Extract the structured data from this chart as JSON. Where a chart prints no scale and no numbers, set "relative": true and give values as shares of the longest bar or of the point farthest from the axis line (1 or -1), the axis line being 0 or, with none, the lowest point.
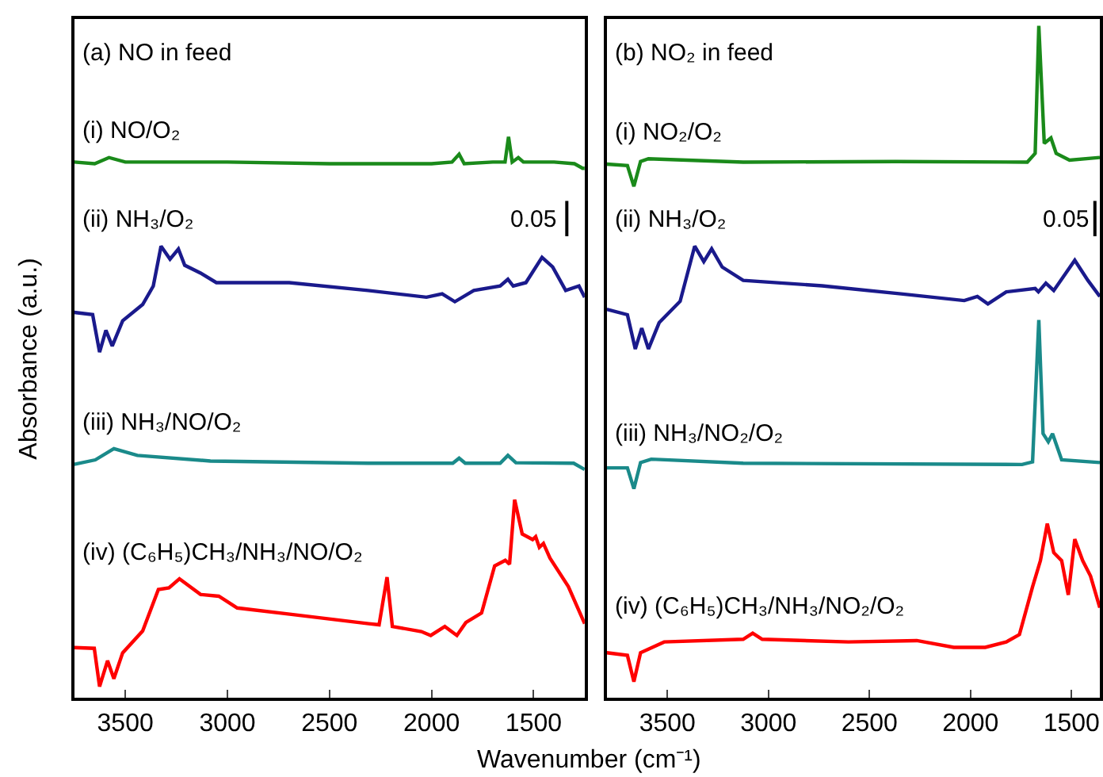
{
  "chart_data": [
    {
      "type": "line",
      "title": "(a) NO in feed",
      "xlabel": "Wavenumber (cm⁻¹)",
      "ylabel": "Absorbance (a.u.)",
      "relative": true,
      "tick_labels": "x",
      "xlim": [
        3750,
        1250
      ],
      "xticks": [
        3500,
        3000,
        2500,
        2000,
        1500
      ],
      "annotations": [
        "0.05"
      ],
      "series": [
        {
          "name": "(i) NO/O₂",
          "color": "#1a8a1a",
          "x": [
            3750,
            3650,
            3580,
            3500,
            3000,
            2500,
            2000,
            1900,
            1865,
            1840,
            1700,
            1640,
            1623,
            1605,
            1575,
            1550,
            1400,
            1300,
            1260,
            1250
          ],
          "values": [
            0.955,
            0.952,
            0.963,
            0.955,
            0.955,
            0.952,
            0.952,
            0.955,
            0.969,
            0.952,
            0.955,
            0.955,
            1.0,
            0.955,
            0.963,
            0.955,
            0.955,
            0.952,
            0.944,
            0.944
          ]
        },
        {
          "name": "(ii) NH₃/O₂",
          "color": "#1a1a8c",
          "x": [
            3750,
            3660,
            3626,
            3595,
            3564,
            3513,
            3415,
            3363,
            3325,
            3281,
            3240,
            3209,
            3131,
            3054,
            2697,
            2311,
            2025,
            1948,
            1886,
            1793,
            1664,
            1626,
            1600,
            1538,
            1459,
            1407,
            1343,
            1278,
            1250
          ],
          "values": [
            0.687,
            0.683,
            0.616,
            0.655,
            0.627,
            0.672,
            0.701,
            0.734,
            0.805,
            0.782,
            0.8,
            0.771,
            0.757,
            0.74,
            0.74,
            0.726,
            0.714,
            0.72,
            0.706,
            0.726,
            0.734,
            0.746,
            0.734,
            0.74,
            0.785,
            0.768,
            0.726,
            0.734,
            0.714
          ]
        },
        {
          "name": "(iii) NH₃/NO/O₂",
          "color": "#1a8a8a",
          "x": [
            3750,
            3647,
            3556,
            3441,
            3083,
            2311,
            1896,
            1865,
            1835,
            1664,
            1626,
            1587,
            1304,
            1250
          ],
          "values": [
            0.416,
            0.424,
            0.444,
            0.432,
            0.422,
            0.418,
            0.418,
            0.427,
            0.418,
            0.418,
            0.432,
            0.419,
            0.418,
            0.407
          ]
        },
        {
          "name": "(iv) (C₆H₅)CH₃/NH₃/NO/O₂",
          "color": "#ff0000",
          "x": [
            3750,
            3652,
            3626,
            3587,
            3556,
            3513,
            3415,
            3338,
            3286,
            3235,
            3131,
            3042,
            2952,
            2695,
            2308,
            2257,
            2218,
            2192,
            2050,
            2004,
            1935,
            1876,
            1832,
            1755,
            1691,
            1639,
            1618,
            1593,
            1556,
            1505,
            1490,
            1472,
            1452,
            1420,
            1330,
            1250
          ],
          "values": [
            0.0895,
            0.088,
            0.02,
            0.066,
            0.034,
            0.08,
            0.119,
            0.193,
            0.196,
            0.212,
            0.184,
            0.181,
            0.16,
            0.149,
            0.132,
            0.13,
            0.215,
            0.127,
            0.118,
            0.111,
            0.127,
            0.111,
            0.134,
            0.151,
            0.235,
            0.245,
            0.238,
            0.353,
            0.292,
            0.282,
            0.287,
            0.268,
            0.275,
            0.249,
            0.198,
            0.132
          ]
        }
      ]
    },
    {
      "type": "line",
      "title": "(b) NO₂ in feed",
      "relative": true,
      "tick_labels": "x",
      "xlim": [
        3800,
        1360
      ],
      "xticks": [
        3500,
        3000,
        2500,
        2000,
        1500
      ],
      "annotations": [
        "0.05"
      ],
      "series": [
        {
          "name": "(i) NO₂/O₂",
          "color": "#1a8a1a",
          "x": [
            3800,
            3698,
            3666,
            3633,
            3594,
            3125,
            2370,
            1719,
            1680,
            1662,
            1635,
            1602,
            1576,
            1510,
            1360
          ],
          "values": [
            0.794,
            0.792,
            0.761,
            0.798,
            0.802,
            0.797,
            0.798,
            0.797,
            0.81,
            1.0,
            0.825,
            0.833,
            0.81,
            0.8,
            0.804
          ]
        },
        {
          "name": "(ii) NH₃/O₂",
          "color": "#1a1a8c",
          "x": [
            3800,
            3698,
            3659,
            3627,
            3594,
            3541,
            3437,
            3365,
            3320,
            3281,
            3229,
            3125,
            2734,
            2344,
            2031,
            1966,
            1914,
            1823,
            1680,
            1664,
            1627,
            1588,
            1484,
            1419,
            1360
          ],
          "values": [
            0.578,
            0.57,
            0.519,
            0.55,
            0.519,
            0.558,
            0.59,
            0.672,
            0.649,
            0.668,
            0.641,
            0.621,
            0.613,
            0.601,
            0.591,
            0.597,
            0.586,
            0.604,
            0.609,
            0.604,
            0.617,
            0.606,
            0.651,
            0.621,
            0.597
          ]
        },
        {
          "name": "(iii) NH₃/NO₂/O₂",
          "color": "#1a8a8a",
          "x": [
            3800,
            3698,
            3666,
            3633,
            3580,
            3125,
            1745,
            1693,
            1662,
            1641,
            1615,
            1594,
            1549,
            1360
          ],
          "values": [
            0.342,
            0.342,
            0.311,
            0.35,
            0.355,
            0.349,
            0.347,
            0.351,
            0.562,
            0.393,
            0.381,
            0.393,
            0.354,
            0.35
          ]
        },
        {
          "name": "(iv) (C₆H₅)CH₃/NH₃/NO₂/O₂",
          "color": "#ff0000",
          "x": [
            3800,
            3698,
            3666,
            3633,
            3516,
            3125,
            3078,
            3031,
            2604,
            2266,
            2083,
            1927,
            1823,
            1758,
            1693,
            1654,
            1620,
            1588,
            1549,
            1516,
            1484,
            1445,
            1406,
            1360
          ],
          "values": [
            0.067,
            0.063,
            0.024,
            0.067,
            0.083,
            0.087,
            0.096,
            0.087,
            0.083,
            0.085,
            0.075,
            0.075,
            0.083,
            0.094,
            0.165,
            0.204,
            0.259,
            0.216,
            0.204,
            0.153,
            0.236,
            0.204,
            0.181,
            0.134
          ]
        }
      ]
    }
  ]
}
